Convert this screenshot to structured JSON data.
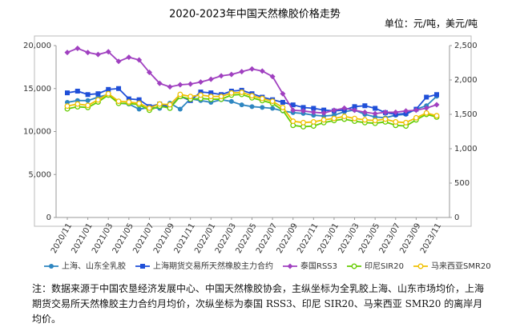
{
  "chart_data": {
    "type": "line",
    "title": "2020-2023年中国天然橡胶价格走势",
    "unit": "单位：元/吨，美元/吨",
    "note": "注：数据来源于中国农垦经济发展中心、中国天然橡胶协会，主纵坐标为全乳胶上海、山东市场均价，上海期货交易所天然橡胶主力合约月均价，次纵坐标为泰国 RSS3、印尼 SIR20、马来西亚 SMR20 的离岸月均价。",
    "categories": [
      "2020/11",
      null,
      "2021/01",
      null,
      "2021/03",
      null,
      "2021/05",
      null,
      "2021/07",
      null,
      "2021/09",
      null,
      "2021/11",
      null,
      "2022/01",
      null,
      "2022/03",
      null,
      "2022/05",
      null,
      "2022/07",
      null,
      "2022/09",
      null,
      "2022/11",
      null,
      "2023/01",
      null,
      "2023/03",
      null,
      "2023/05",
      null,
      "2023/07",
      null,
      "2023/09",
      null,
      "2023/11"
    ],
    "ylim": [
      0,
      20000
    ],
    "yticks": [
      0,
      {
        "value": 5000,
        "label": "5,000"
      },
      {
        "value": 10000,
        "label": "10,000"
      },
      {
        "value": 15000,
        "label": "15,000"
      },
      {
        "value": 20000,
        "label": "20,000"
      }
    ],
    "y2lim": [
      0,
      2500
    ],
    "y2ticks": [
      0,
      500,
      {
        "value": 1000,
        "label": "1,000"
      },
      {
        "value": 1500,
        "label": "1,500"
      },
      {
        "value": 2000,
        "label": "2,000"
      },
      {
        "value": 2500,
        "label": "2,500"
      }
    ],
    "series": [
      {
        "name": "上海、山东全乳胶",
        "color": "#2e86c1",
        "marker": "circle",
        "values": [
          13400,
          13600,
          13600,
          14000,
          14300,
          13300,
          13200,
          12600,
          12800,
          12700,
          13300,
          12600,
          13800,
          13600,
          13400,
          13700,
          13500,
          13100,
          12900,
          12800,
          12700,
          12400,
          12200,
          12100,
          11900,
          11800,
          11900,
          12300,
          12500,
          12000,
          11700,
          11600,
          11900,
          12000,
          12600,
          13000,
          14100
        ]
      },
      {
        "name": "上海期货交易所天然橡胶主力合约",
        "color": "#1f4fd8",
        "marker": "square",
        "values": [
          14500,
          14700,
          14300,
          14400,
          14900,
          15000,
          13800,
          13700,
          12900,
          13200,
          12800,
          14100,
          13600,
          14600,
          14500,
          14300,
          14700,
          14800,
          14400,
          14000,
          13700,
          13400,
          13100,
          12800,
          12700,
          12500,
          12400,
          12500,
          12900,
          13000,
          12700,
          12200,
          12000,
          12100,
          12600,
          14000,
          14300
        ]
      },
      {
        "name": "泰国RSS3",
        "color": "#a040c0",
        "marker": "diamond",
        "axis": "y2",
        "values": [
          2400,
          2460,
          2400,
          2370,
          2410,
          2270,
          2330,
          2290,
          2110,
          1950,
          1900,
          1930,
          1940,
          1970,
          2010,
          2060,
          2080,
          2120,
          2160,
          2130,
          2050,
          1800,
          1560,
          1550,
          1530,
          1520,
          1560,
          1590,
          1560,
          1530,
          1510,
          1530,
          1530,
          1550,
          1560,
          1590,
          1640
        ]
      },
      {
        "name": "印尼SIR20",
        "color": "#66cc00",
        "marker": "hollow",
        "axis": "y2",
        "values": [
          1580,
          1610,
          1600,
          1680,
          1780,
          1660,
          1660,
          1640,
          1560,
          1620,
          1590,
          1760,
          1720,
          1730,
          1720,
          1720,
          1780,
          1790,
          1740,
          1700,
          1660,
          1560,
          1340,
          1320,
          1330,
          1380,
          1410,
          1430,
          1400,
          1380,
          1370,
          1390,
          1340,
          1330,
          1420,
          1500,
          1460
        ]
      },
      {
        "name": "马来西亚SMR20",
        "color": "#f0c000",
        "marker": "hollow",
        "axis": "y2",
        "values": [
          1620,
          1650,
          1630,
          1710,
          1800,
          1690,
          1680,
          1660,
          1590,
          1650,
          1640,
          1790,
          1760,
          1780,
          1760,
          1760,
          1810,
          1820,
          1770,
          1730,
          1690,
          1600,
          1400,
          1380,
          1390,
          1420,
          1440,
          1470,
          1440,
          1420,
          1410,
          1430,
          1390,
          1380,
          1450,
          1520,
          1480
        ]
      }
    ]
  }
}
